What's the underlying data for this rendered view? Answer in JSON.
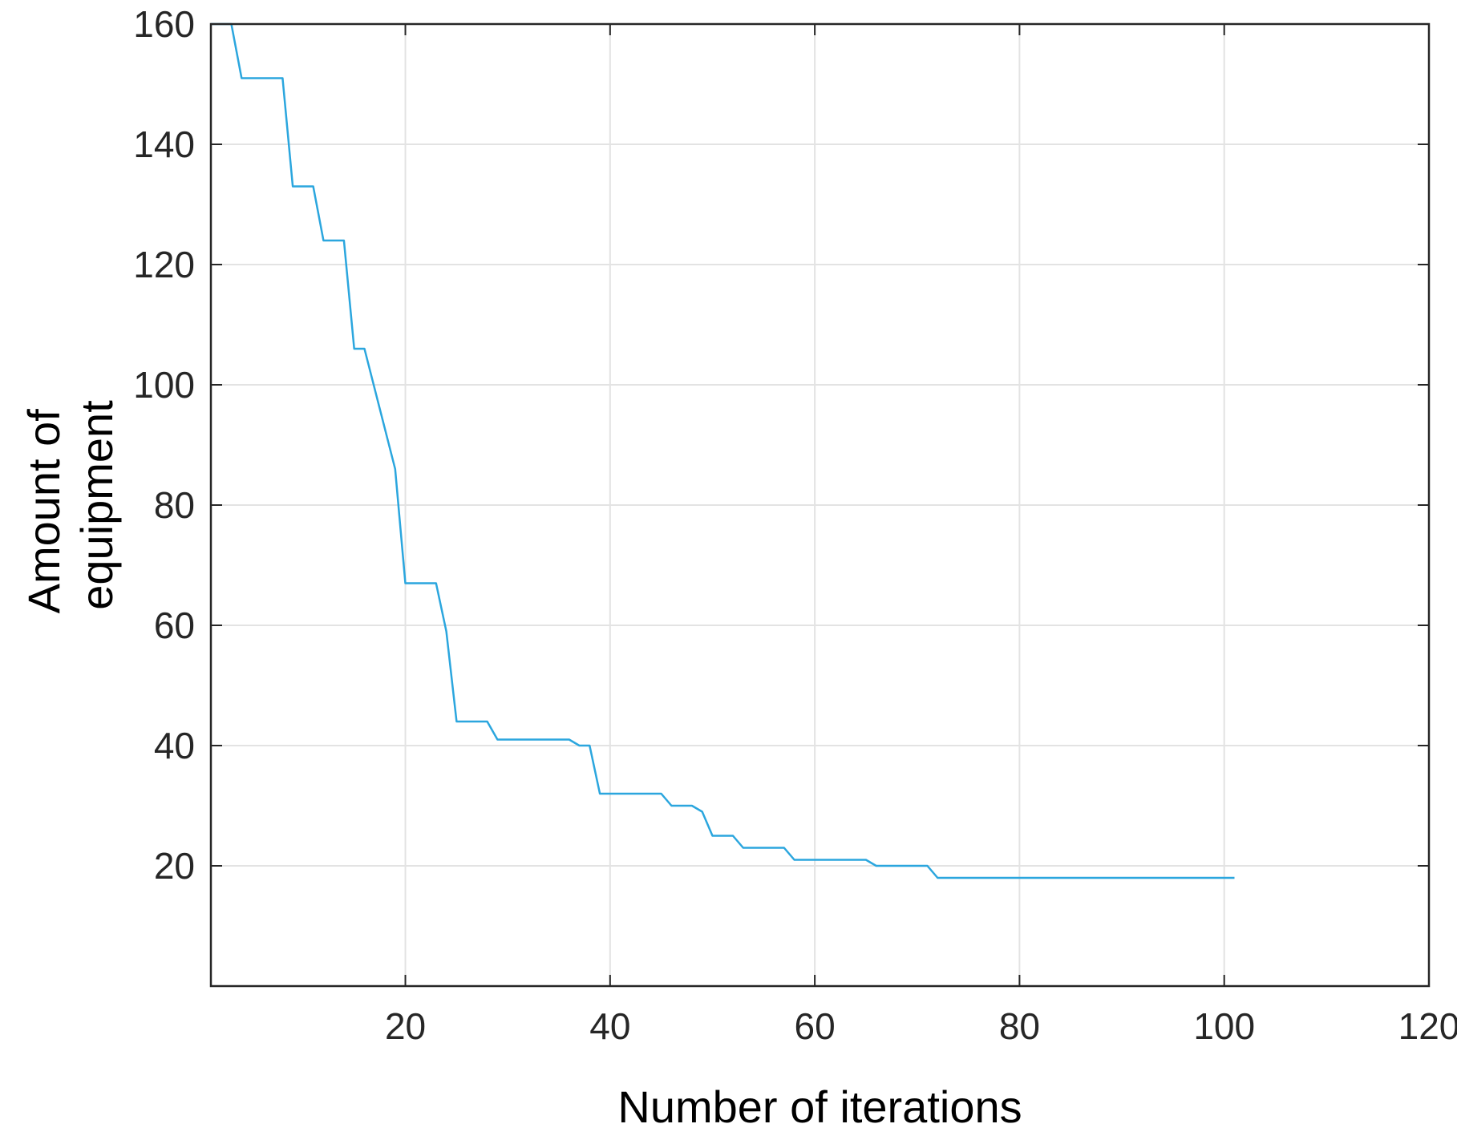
{
  "chart_data": {
    "type": "line",
    "xlabel": "Number of iterations",
    "ylabel_lines": [
      "Amount of",
      "equipment"
    ],
    "xlim": [
      1,
      120
    ],
    "ylim": [
      0,
      160
    ],
    "xticks": [
      20,
      40,
      60,
      80,
      100,
      120
    ],
    "yticks": [
      20,
      40,
      60,
      80,
      100,
      120,
      140,
      160
    ],
    "grid": true,
    "colors": {
      "line": "#2ba6de",
      "grid": "#e3e3e3",
      "axis": "#262626"
    },
    "series": [
      {
        "x": [
          1,
          3,
          4,
          8,
          9,
          11,
          12,
          14,
          15,
          16,
          19,
          20,
          23,
          24,
          25,
          28,
          29,
          36,
          37,
          38,
          39,
          45,
          46,
          48,
          49,
          50,
          52,
          53,
          57,
          58,
          65,
          66,
          71,
          72,
          101
        ],
        "y": [
          160,
          160,
          151,
          151,
          133,
          133,
          124,
          124,
          106,
          106,
          86,
          67,
          67,
          59,
          44,
          44,
          41,
          41,
          40,
          40,
          32,
          32,
          30,
          30,
          29,
          25,
          25,
          23,
          23,
          21,
          21,
          20,
          20,
          18,
          18
        ]
      }
    ]
  }
}
